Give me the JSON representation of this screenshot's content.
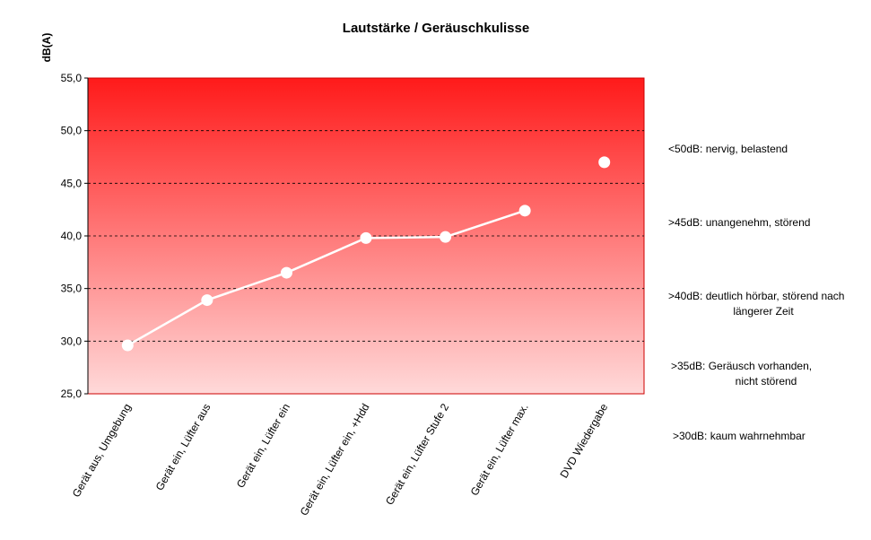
{
  "chart_data": {
    "type": "line",
    "title": "Lautstärke / Geräuschkulisse",
    "xlabel": "",
    "ylabel": "dB(A)",
    "ylim": [
      25,
      55
    ],
    "yticks": [
      "25,0",
      "30,0",
      "35,0",
      "40,0",
      "45,0",
      "50,0",
      "55,0"
    ],
    "grid": true,
    "categories": [
      "Gerät aus, Umgebung",
      "Gerät ein, Lüfter aus",
      "Gerät ein, Lüfter ein",
      "Gerät ein, Lüfter ein, +Hdd",
      "Gerät ein, Lüfter Stufe 2",
      "Gerät ein, Lüfter max.",
      "DVD Wiedergabe"
    ],
    "series": [
      {
        "values": [
          29.6,
          33.9,
          36.5,
          39.8,
          39.9,
          42.4,
          null
        ]
      },
      {
        "values": [
          null,
          null,
          null,
          null,
          null,
          null,
          47.0
        ]
      }
    ],
    "annotations": [
      {
        "lines": [
          "<50dB: nervig, belastend"
        ]
      },
      {
        "lines": [
          ">45dB: unangenehm, störend"
        ]
      },
      {
        "lines": [
          ">40dB: deutlich hörbar, störend nach",
          "längerer Zeit"
        ]
      },
      {
        "lines": [
          ">35dB: Geräusch vorhanden,",
          "nicht störend"
        ]
      },
      {
        "lines": [
          ">30dB: kaum wahrnehmbar"
        ]
      }
    ],
    "colors": {
      "gradient_top": "#ff1a1a",
      "gradient_bottom": "#ffd9d9",
      "series": "#ffffff",
      "frame": "#cc0000"
    }
  }
}
